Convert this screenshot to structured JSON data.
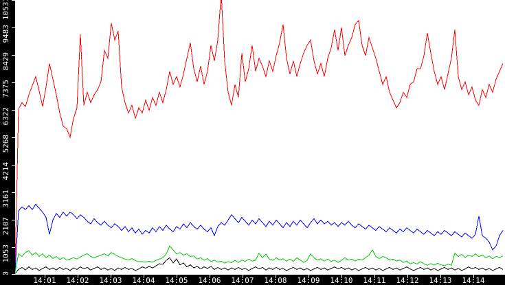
{
  "chart_data": {
    "type": "line",
    "title": "",
    "xlabel": "",
    "ylabel": "",
    "grid": false,
    "legend": "none",
    "background": "#ffffff",
    "axis_background": "#000000",
    "axis_text_color": "#ffffff",
    "x_axis": {
      "unit": "time (hh:mm)",
      "start_seconds": 6.25,
      "step_seconds": 6.25,
      "ticks": [
        {
          "label": "14:01",
          "seconds": 60
        },
        {
          "label": "14:02",
          "seconds": 120
        },
        {
          "label": "14:03",
          "seconds": 180
        },
        {
          "label": "14:04",
          "seconds": 240
        },
        {
          "label": "14:05",
          "seconds": 300
        },
        {
          "label": "14:06",
          "seconds": 360
        },
        {
          "label": "14:07",
          "seconds": 420
        },
        {
          "label": "14:08",
          "seconds": 480
        },
        {
          "label": "14:09",
          "seconds": 540
        },
        {
          "label": "14:10",
          "seconds": 600
        },
        {
          "label": "14:11",
          "seconds": 660
        },
        {
          "label": "14:12",
          "seconds": 720
        },
        {
          "label": "14:13",
          "seconds": 780
        },
        {
          "label": "14:14",
          "seconds": 840
        }
      ]
    },
    "y_axis": {
      "min": 0,
      "max": 10537,
      "ticks": [
        {
          "label": "0",
          "value": 0
        },
        {
          "label": "1053",
          "value": 1053
        },
        {
          "label": "2107",
          "value": 2107
        },
        {
          "label": "3161",
          "value": 3161
        },
        {
          "label": "4214",
          "value": 4214
        },
        {
          "label": "5268",
          "value": 5268
        },
        {
          "label": "6322",
          "value": 6322
        },
        {
          "label": "7375",
          "value": 7375
        },
        {
          "label": "8429",
          "value": 8429
        },
        {
          "label": "9483",
          "value": 9483
        },
        {
          "label": "10537",
          "value": 10537
        }
      ]
    },
    "series": [
      {
        "name": "red",
        "color": "#ff0000",
        "values": [
          300,
          6350,
          6600,
          6450,
          6900,
          7250,
          7600,
          7050,
          6450,
          7200,
          8100,
          7500,
          6900,
          6200,
          5700,
          5600,
          5270,
          6000,
          6400,
          9220,
          6500,
          7000,
          6600,
          6900,
          7100,
          7400,
          8600,
          8300,
          9650,
          9000,
          9350,
          7200,
          6600,
          6200,
          6500,
          6000,
          6400,
          6200,
          6700,
          6300,
          6800,
          6500,
          7000,
          6600,
          7100,
          7800,
          7300,
          7600,
          7200,
          7700,
          8300,
          8900,
          7900,
          7400,
          8000,
          7300,
          7800,
          8800,
          8200,
          9000,
          10800,
          8200,
          7000,
          6500,
          7300,
          6800,
          8500,
          7400,
          7900,
          8800,
          7800,
          8300,
          8000,
          7600,
          8200,
          7800,
          8400,
          8900,
          9600,
          8300,
          7700,
          8200,
          7600,
          8100,
          8500,
          8800,
          9000,
          8200,
          7700,
          8100,
          7600,
          8300,
          8700,
          9400,
          8600,
          9480,
          8400,
          8800,
          9100,
          9600,
          9750,
          8800,
          8400,
          9100,
          8700,
          8300,
          7800,
          7300,
          7600,
          7000,
          6700,
          6400,
          6600,
          7000,
          6800,
          7300,
          7400,
          7900,
          7900,
          8400,
          9270,
          8500,
          7800,
          7300,
          7600,
          7100,
          7700,
          8300,
          9400,
          7600,
          7100,
          7400,
          6900,
          7200,
          6700,
          6500,
          7100,
          6800,
          7300,
          7000,
          7500,
          7800,
          8100
        ]
      },
      {
        "name": "blue",
        "color": "#0000ff",
        "values": [
          150,
          2450,
          2600,
          2500,
          2650,
          2500,
          2700,
          2550,
          2400,
          2200,
          1550,
          2100,
          2350,
          2200,
          2400,
          2250,
          2400,
          2300,
          2150,
          2300,
          2200,
          2050,
          1950,
          2150,
          2000,
          1900,
          2050,
          1900,
          1800,
          1950,
          1850,
          1700,
          1850,
          1650,
          1800,
          1600,
          1750,
          1550,
          1700,
          1600,
          1800,
          1650,
          1850,
          1700,
          1900,
          1750,
          1650,
          1850,
          1750,
          1950,
          1800,
          2000,
          1850,
          1750,
          1900,
          1750,
          1650,
          1800,
          1500,
          1850,
          2000,
          1900,
          2100,
          2300,
          2150,
          2000,
          2200,
          2050,
          1900,
          2100,
          1950,
          2150,
          2000,
          1850,
          2050,
          1900,
          2100,
          1950,
          1800,
          2000,
          1850,
          2050,
          1900,
          2100,
          1950,
          1800,
          2000,
          2150,
          1950,
          2100,
          1950,
          2050,
          1900,
          2000,
          1850,
          2000,
          1900,
          2050,
          1900,
          1800,
          1950,
          1850,
          1750,
          1900,
          1800,
          1700,
          1850,
          1750,
          1650,
          1800,
          1700,
          1600,
          1750,
          1650,
          1800,
          1700,
          1600,
          1750,
          1650,
          1550,
          1700,
          1600,
          1500,
          1650,
          1550,
          1700,
          1600,
          1500,
          1650,
          1550,
          1450,
          1600,
          1500,
          1400,
          1550,
          2250,
          1500,
          1400,
          1250,
          950,
          1100,
          1500,
          1700
        ]
      },
      {
        "name": "green",
        "color": "#00cc00",
        "values": [
          100,
          800,
          700,
          850,
          920,
          750,
          850,
          700,
          800,
          650,
          750,
          620,
          700,
          580,
          660,
          560,
          600,
          650,
          600,
          680,
          750,
          800,
          700,
          650,
          700,
          750,
          800,
          720,
          850,
          780,
          700,
          650,
          600,
          560,
          620,
          540,
          500,
          500,
          480,
          520,
          480,
          550,
          600,
          650,
          800,
          1100,
          950,
          800,
          850,
          750,
          800,
          700,
          720,
          600,
          650,
          550,
          620,
          500,
          560,
          480,
          520,
          440,
          500,
          460,
          550,
          470,
          560,
          510,
          600,
          520,
          560,
          830,
          650,
          790,
          600,
          550,
          650,
          560,
          610,
          520,
          600,
          510,
          650,
          560,
          470,
          550,
          800,
          650,
          560,
          610,
          520,
          600,
          510,
          560,
          470,
          550,
          650,
          560,
          600,
          520,
          600,
          560,
          650,
          750,
          950,
          700,
          620,
          700,
          650,
          560,
          600,
          520,
          560,
          470,
          520,
          420,
          460,
          410,
          500,
          420,
          360,
          430,
          370,
          440,
          380,
          340,
          410,
          360,
          830,
          700,
          780,
          660,
          750,
          700,
          800,
          690,
          760,
          650,
          720,
          610,
          700,
          660,
          720
        ]
      },
      {
        "name": "black",
        "color": "#000000",
        "values": [
          50,
          200,
          280,
          180,
          300,
          200,
          260,
          160,
          240,
          300,
          200,
          260,
          180,
          280,
          200,
          240,
          160,
          260,
          200,
          300,
          220,
          280,
          180,
          240,
          300,
          200,
          260,
          180,
          240,
          160,
          260,
          200,
          280,
          200,
          240,
          160,
          220,
          300,
          250,
          320,
          260,
          340,
          420,
          400,
          550,
          650,
          450,
          600,
          380,
          450,
          300,
          380,
          260,
          320,
          220,
          300,
          240,
          320,
          200,
          280,
          200,
          260,
          180,
          260,
          200,
          280,
          200,
          240,
          160,
          240,
          300,
          220,
          280,
          180,
          260,
          200,
          280,
          200,
          240,
          160,
          220,
          280,
          200,
          260,
          180,
          240,
          160,
          220,
          280,
          200,
          260,
          180,
          240,
          300,
          220,
          280,
          200,
          260,
          180,
          240,
          160,
          220,
          280,
          200,
          260,
          180,
          240,
          160,
          220,
          280,
          200,
          260,
          180,
          240,
          300,
          220,
          160,
          220,
          280,
          200,
          260,
          180,
          240,
          160,
          220,
          280,
          200,
          260,
          180,
          240,
          160,
          220,
          300,
          220,
          280,
          200,
          260,
          180,
          240,
          160,
          220,
          280,
          200
        ]
      }
    ]
  }
}
